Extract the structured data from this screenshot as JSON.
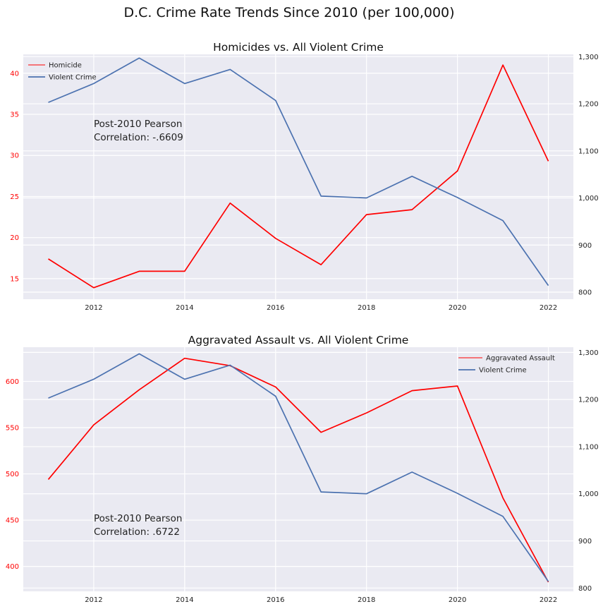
{
  "figure": {
    "title": "D.C. Crime Rate Trends Since 2010 (per 100,000)"
  },
  "chart_data": [
    {
      "type": "line",
      "title": "Homicides vs. All Violent Crime",
      "x": [
        2011,
        2012,
        2013,
        2014,
        2015,
        2016,
        2017,
        2018,
        2019,
        2020,
        2021,
        2022
      ],
      "x_ticks": [
        "2012",
        "2014",
        "2016",
        "2018",
        "2020",
        "2022"
      ],
      "xlim": [
        2010.45,
        2022.55
      ],
      "left_axis": {
        "ylim": [
          12.5,
          42.3
        ],
        "ticks": [
          "15",
          "20",
          "25",
          "30",
          "35",
          "40"
        ],
        "tick_color": "#ff0000"
      },
      "right_axis": {
        "ylim": [
          785,
          1305
        ],
        "ticks": [
          "800",
          "900",
          "1,000",
          "1,100",
          "1,200",
          "1,300"
        ]
      },
      "series": [
        {
          "name": "Homicide",
          "axis": "left",
          "color": "#ff0000",
          "values": [
            17.4,
            13.9,
            15.9,
            15.9,
            24.2,
            19.9,
            16.7,
            22.8,
            23.4,
            28.1,
            41.0,
            29.3
          ]
        },
        {
          "name": "Violent Crime",
          "axis": "right",
          "color": "#4c72b0",
          "values": [
            1203,
            1243,
            1297,
            1243,
            1273,
            1207,
            1004,
            1000,
            1046,
            1001,
            952,
            814
          ]
        }
      ],
      "legend_position": "top-left",
      "annotation": [
        "Post-2010 Pearson",
        "Correlation: -.6609"
      ],
      "grid": true
    },
    {
      "type": "line",
      "title": "Aggravated Assault vs. All Violent Crime",
      "x": [
        2011,
        2012,
        2013,
        2014,
        2015,
        2016,
        2017,
        2018,
        2019,
        2020,
        2021,
        2022
      ],
      "x_ticks": [
        "2012",
        "2014",
        "2016",
        "2018",
        "2020",
        "2022"
      ],
      "xlim": [
        2010.45,
        2022.55
      ],
      "left_axis": {
        "ylim": [
          373,
          637
        ],
        "ticks": [
          "400",
          "450",
          "500",
          "550",
          "600"
        ],
        "tick_color": "#ff0000"
      },
      "right_axis": {
        "ylim": [
          793,
          1311
        ],
        "ticks": [
          "800",
          "900",
          "1,000",
          "1,100",
          "1,200",
          "1,300"
        ]
      },
      "series": [
        {
          "name": "Aggravated Assault",
          "axis": "left",
          "color": "#ff0000",
          "values": [
            494,
            553,
            591,
            625,
            617,
            594,
            545,
            566,
            590,
            595,
            474,
            383
          ]
        },
        {
          "name": "Violent Crime",
          "axis": "right",
          "color": "#4c72b0",
          "values": [
            1203,
            1243,
            1297,
            1243,
            1273,
            1207,
            1004,
            1000,
            1046,
            1001,
            952,
            814
          ]
        }
      ],
      "legend_position": "top-right",
      "annotation": [
        "Post-2010 Pearson",
        "Correlation: .6722"
      ],
      "grid": true
    }
  ]
}
